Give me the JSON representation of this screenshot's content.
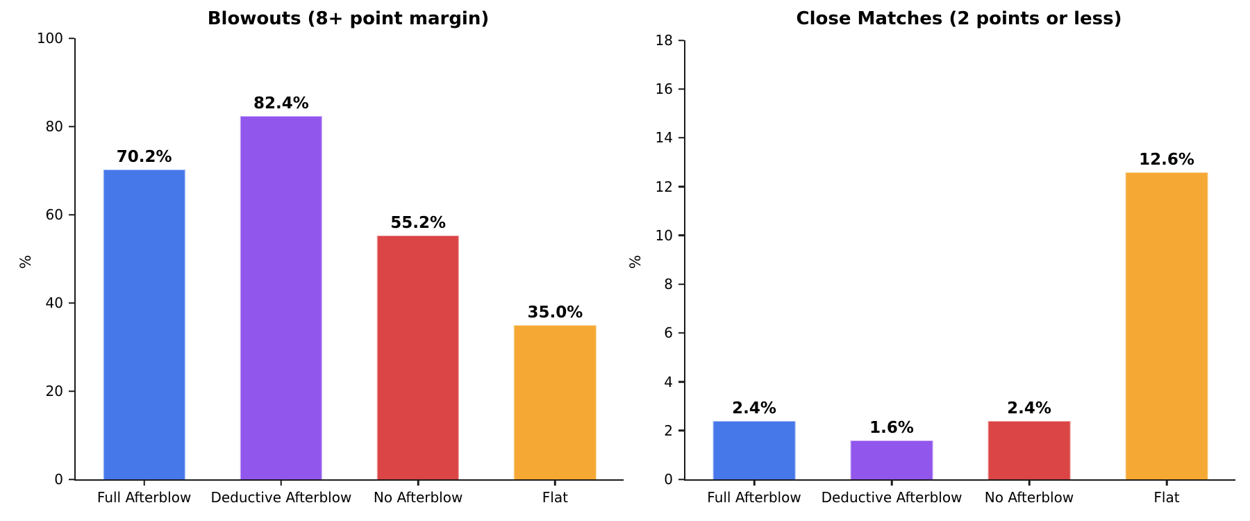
{
  "chart_data": [
    {
      "type": "bar",
      "title": "Blowouts (8+ point margin)",
      "xlabel": "",
      "ylabel": "%",
      "categories": [
        "Full Afterblow",
        "Deductive Afterblow",
        "No Afterblow",
        "Flat"
      ],
      "values": [
        70.2,
        82.4,
        55.2,
        35.0
      ],
      "bar_labels": [
        "70.2%",
        "82.4%",
        "55.2%",
        "35.0%"
      ],
      "ylim": [
        0,
        100
      ],
      "yticks": [
        0,
        20,
        40,
        60,
        80,
        100
      ],
      "grid": "off",
      "legend": "none",
      "bar_width_fraction": 0.6
    },
    {
      "type": "bar",
      "title": "Close Matches (2 points or less)",
      "xlabel": "",
      "ylabel": "%",
      "categories": [
        "Full Afterblow",
        "Deductive Afterblow",
        "No Afterblow",
        "Flat"
      ],
      "values": [
        2.4,
        1.6,
        2.4,
        12.6
      ],
      "bar_labels": [
        "2.4%",
        "1.6%",
        "2.4%",
        "12.6%"
      ],
      "ylim": [
        0,
        18
      ],
      "yticks": [
        0,
        2,
        4,
        6,
        8,
        10,
        12,
        14,
        16,
        18
      ],
      "grid": "off",
      "legend": "none",
      "bar_width_fraction": 0.6
    }
  ],
  "colors": {
    "bars": [
      "#4778EA",
      "#9156EC",
      "#DB4545",
      "#F5A833"
    ],
    "axis": "#1a1a1a",
    "text": "#000000"
  }
}
